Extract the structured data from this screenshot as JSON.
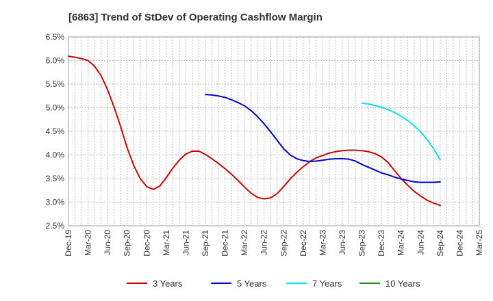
{
  "chart_data": {
    "type": "line",
    "title": "[6863]  Trend of StDev of Operating Cashflow Margin",
    "xlabel": "",
    "ylabel": "",
    "y_tick_labels": [
      "2.5%",
      "3.0%",
      "3.5%",
      "4.0%",
      "4.5%",
      "5.0%",
      "5.5%",
      "6.0%",
      "6.5%"
    ],
    "ylim": [
      2.5,
      6.5
    ],
    "x_tick_labels": [
      "Dec-19",
      "Mar-20",
      "Jun-20",
      "Sep-20",
      "Dec-20",
      "Mar-21",
      "Jun-21",
      "Sep-21",
      "Dec-21",
      "Mar-22",
      "Jun-22",
      "Sep-22",
      "Dec-22",
      "Mar-23",
      "Jun-23",
      "Sep-23",
      "Dec-23",
      "Mar-24",
      "Jun-24",
      "Sep-24",
      "Dec-24",
      "Mar-25"
    ],
    "grid": "dashed",
    "legend_position": "bottom",
    "series": [
      {
        "name": "3 Years",
        "color": "#cc0000",
        "x": [
          "Dec-19",
          "Jan-20",
          "Feb-20",
          "Mar-20",
          "Apr-20",
          "May-20",
          "Jun-20",
          "Jul-20",
          "Aug-20",
          "Sep-20",
          "Oct-20",
          "Nov-20",
          "Dec-20",
          "Jan-21",
          "Feb-21",
          "Mar-21",
          "Apr-21",
          "May-21",
          "Jun-21",
          "Jul-21",
          "Aug-21",
          "Sep-21",
          "Oct-21",
          "Nov-21",
          "Dec-21",
          "Jan-22",
          "Feb-22",
          "Mar-22",
          "Apr-22",
          "May-22",
          "Jun-22",
          "Jul-22",
          "Aug-22",
          "Sep-22",
          "Oct-22",
          "Nov-22",
          "Dec-22",
          "Jan-23",
          "Feb-23",
          "Mar-23",
          "Apr-23",
          "May-23",
          "Jun-23",
          "Jul-23",
          "Aug-23",
          "Sep-23",
          "Oct-23",
          "Nov-23",
          "Dec-23",
          "Jan-24",
          "Feb-24",
          "Mar-24",
          "Apr-24",
          "May-24",
          "Jun-24",
          "Jul-24",
          "Aug-24",
          "Sep-24"
        ],
        "values": [
          6.09,
          6.07,
          6.04,
          6.0,
          5.88,
          5.68,
          5.38,
          5.01,
          4.6,
          4.15,
          3.78,
          3.5,
          3.33,
          3.27,
          3.34,
          3.52,
          3.72,
          3.89,
          4.02,
          4.08,
          4.08,
          4.01,
          3.92,
          3.82,
          3.71,
          3.59,
          3.46,
          3.32,
          3.19,
          3.1,
          3.07,
          3.09,
          3.18,
          3.33,
          3.49,
          3.63,
          3.75,
          3.86,
          3.94,
          3.99,
          4.04,
          4.07,
          4.09,
          4.1,
          4.1,
          4.09,
          4.07,
          4.03,
          3.96,
          3.84,
          3.67,
          3.5,
          3.36,
          3.23,
          3.13,
          3.04,
          2.98,
          2.93
        ]
      },
      {
        "name": "5 Years",
        "color": "#0000cc",
        "x": [
          "Sep-21",
          "Oct-21",
          "Nov-21",
          "Dec-21",
          "Jan-22",
          "Feb-22",
          "Mar-22",
          "Apr-22",
          "May-22",
          "Jun-22",
          "Jul-22",
          "Aug-22",
          "Sep-22",
          "Oct-22",
          "Nov-22",
          "Dec-22",
          "Jan-23",
          "Feb-23",
          "Mar-23",
          "Apr-23",
          "May-23",
          "Jun-23",
          "Jul-23",
          "Aug-23",
          "Sep-23",
          "Oct-23",
          "Nov-23",
          "Dec-23",
          "Jan-24",
          "Feb-24",
          "Mar-24",
          "Apr-24",
          "May-24",
          "Jun-24",
          "Jul-24",
          "Aug-24",
          "Sep-24"
        ],
        "values": [
          5.28,
          5.27,
          5.25,
          5.22,
          5.17,
          5.11,
          5.04,
          4.94,
          4.81,
          4.66,
          4.49,
          4.31,
          4.13,
          4.0,
          3.92,
          3.88,
          3.86,
          3.87,
          3.89,
          3.91,
          3.92,
          3.92,
          3.91,
          3.87,
          3.8,
          3.74,
          3.68,
          3.62,
          3.58,
          3.53,
          3.49,
          3.46,
          3.43,
          3.42,
          3.42,
          3.42,
          3.43
        ]
      },
      {
        "name": "7 Years",
        "color": "#00e5ee",
        "x": [
          "Sep-23",
          "Oct-23",
          "Nov-23",
          "Dec-23",
          "Jan-24",
          "Feb-24",
          "Mar-24",
          "Apr-24",
          "May-24",
          "Jun-24",
          "Jul-24",
          "Aug-24",
          "Sep-24"
        ],
        "values": [
          5.1,
          5.08,
          5.05,
          5.01,
          4.96,
          4.9,
          4.82,
          4.73,
          4.62,
          4.49,
          4.33,
          4.13,
          3.9
        ]
      },
      {
        "name": "10 Years",
        "color": "#228b22",
        "x": [],
        "values": []
      }
    ]
  }
}
